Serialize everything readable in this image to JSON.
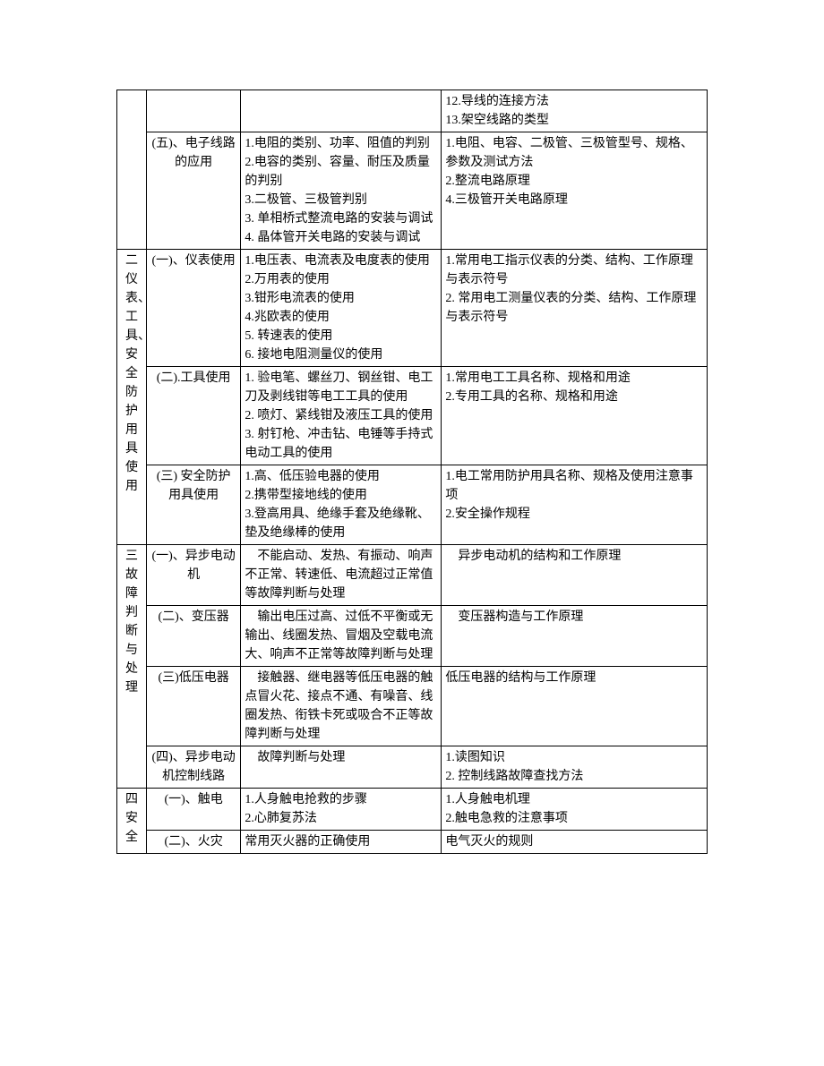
{
  "table": {
    "rows": [
      {
        "col1": "",
        "col2": "",
        "col3": "",
        "col4": "12.导线的连接方法\n13.架空线路的类型",
        "col1_rowspan": 1,
        "col2_rowspan": 1,
        "show_col1": true,
        "show_col2": true
      },
      {
        "col1": "",
        "col2": "(五)、电子线路的应用",
        "col3": "1.电阻的类别、功率、阻值的判别\n2.电容的类别、容量、耐压及质量的判别\n3.二极管、三极管判别\n3. 单相桥式整流电路的安装与调试\n4. 晶体管开关电路的安装与调试",
        "col4": "1.电阻、电容、二极管、三极管型号、规格、参数及测试方法\n2.整流电路原理\n4.三极管开关电路原理",
        "show_col1": false,
        "show_col2": true
      },
      {
        "col1": "二仪表、工具、安全防护用具使用",
        "col2": "(一)、仪表使用",
        "col3": "1.电压表、电流表及电度表的使用\n2.万用表的使用\n3.钳形电流表的使用\n4.兆欧表的使用\n5. 转速表的使用\n6. 接地电阻测量仪的使用",
        "col4": "1.常用电工指示仪表的分类、结构、工作原理与表示符号\n2. 常用电工测量仪表的分类、结构、工作原理与表示符号",
        "col1_rowspan": 3,
        "show_col1": true,
        "show_col2": true
      },
      {
        "col2": "(二).工具使用",
        "col3": "1. 验电笔、螺丝刀、钢丝钳、电工刀及剥线钳等电工工具的使用\n2. 喷灯、紧线钳及液压工具的使用\n3. 射钉枪、冲击钻、电锤等手持式电动工具的使用",
        "col4": "1.常用电工工具名称、规格和用途\n2.专用工具的名称、规格和用途",
        "show_col1": false,
        "show_col2": true
      },
      {
        "col2": "(三) 安全防护用具使用",
        "col3": "1.高、低压验电器的使用\n2.携带型接地线的使用\n3.登高用具、绝缘手套及绝缘靴、垫及绝缘棒的使用",
        "col4": "1.电工常用防护用具名称、规格及使用注意事项\n2.安全操作规程",
        "show_col1": false,
        "show_col2": true
      },
      {
        "col1": "三故障判断与处理",
        "col2": "(一)、异步电动机",
        "col3": "　不能启动、发热、有振动、响声不正常、转速低、电流超过正常值等故障判断与处理",
        "col4": "　异步电动机的结构和工作原理",
        "col1_rowspan": 4,
        "show_col1": true,
        "show_col2": true
      },
      {
        "col2": "(二)、变压器",
        "col3": "　输出电压过高、过低不平衡或无输出、线圈发热、冒烟及空载电流大、响声不正常等故障判断与处理",
        "col4": "　变压器构造与工作原理",
        "show_col1": false,
        "show_col2": true
      },
      {
        "col2": "(三)低压电器",
        "col3": "　接触器、继电器等低压电器的触点冒火花、接点不通、有噪音、线圈发热、衔铁卡死或吸合不正等故障判断与处理",
        "col4": "低压电器的结构与工作原理",
        "show_col1": false,
        "show_col2": true
      },
      {
        "col2": "(四)、异步电动机控制线路",
        "col3": "　故障判断与处理",
        "col4": "1.读图知识\n2. 控制线路故障查找方法",
        "show_col1": false,
        "show_col2": true
      },
      {
        "col1": "四安全",
        "col2": "(一)、触电",
        "col3": "1.人身触电抢救的步骤\n2.心肺复苏法",
        "col4": "1.人身触电机理\n2.触电急救的注意事项",
        "col1_rowspan": 2,
        "show_col1": true,
        "show_col2": true
      },
      {
        "col2": "(二)、火灾",
        "col3": "常用灭火器的正确使用",
        "col4": "电气灭火的规则",
        "show_col1": false,
        "show_col2": true
      }
    ]
  },
  "styles": {
    "border_color": "#000000",
    "background_color": "#ffffff",
    "text_color": "#000000",
    "font_size": 14
  }
}
